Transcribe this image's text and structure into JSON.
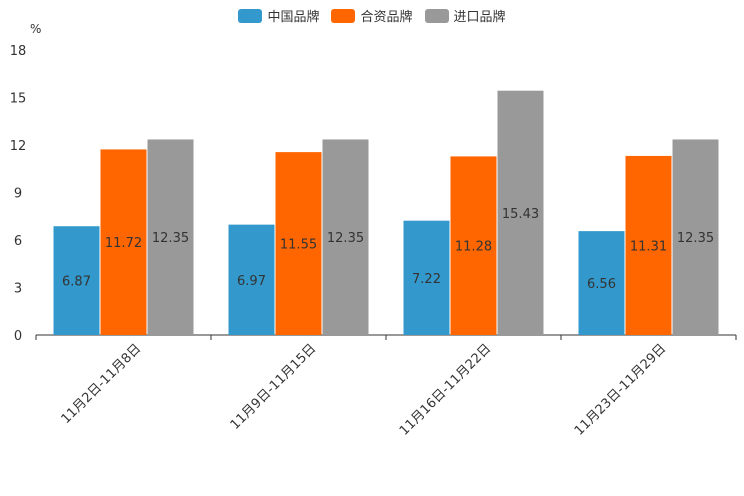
{
  "chart_data": {
    "type": "bar",
    "title": "",
    "unit_label": "%",
    "xlabel": "",
    "ylabel": "",
    "ylim": [
      0,
      18
    ],
    "yticks": [
      0,
      3,
      6,
      9,
      12,
      15,
      18
    ],
    "categories": [
      "11月2日-11月8日",
      "11月9日-11月15日",
      "11月16日-11月22日",
      "11月23日-11月29日"
    ],
    "series": [
      {
        "name": "中国品牌",
        "color": "#3399cc",
        "values": [
          6.87,
          6.97,
          7.22,
          6.56
        ]
      },
      {
        "name": "合资品牌",
        "color": "#ff6600",
        "values": [
          11.72,
          11.55,
          11.28,
          11.31
        ]
      },
      {
        "name": "进口品牌",
        "color": "#999999",
        "values": [
          12.35,
          12.35,
          15.43,
          12.35
        ]
      }
    ],
    "grid": false,
    "legend_position": "top-center"
  }
}
